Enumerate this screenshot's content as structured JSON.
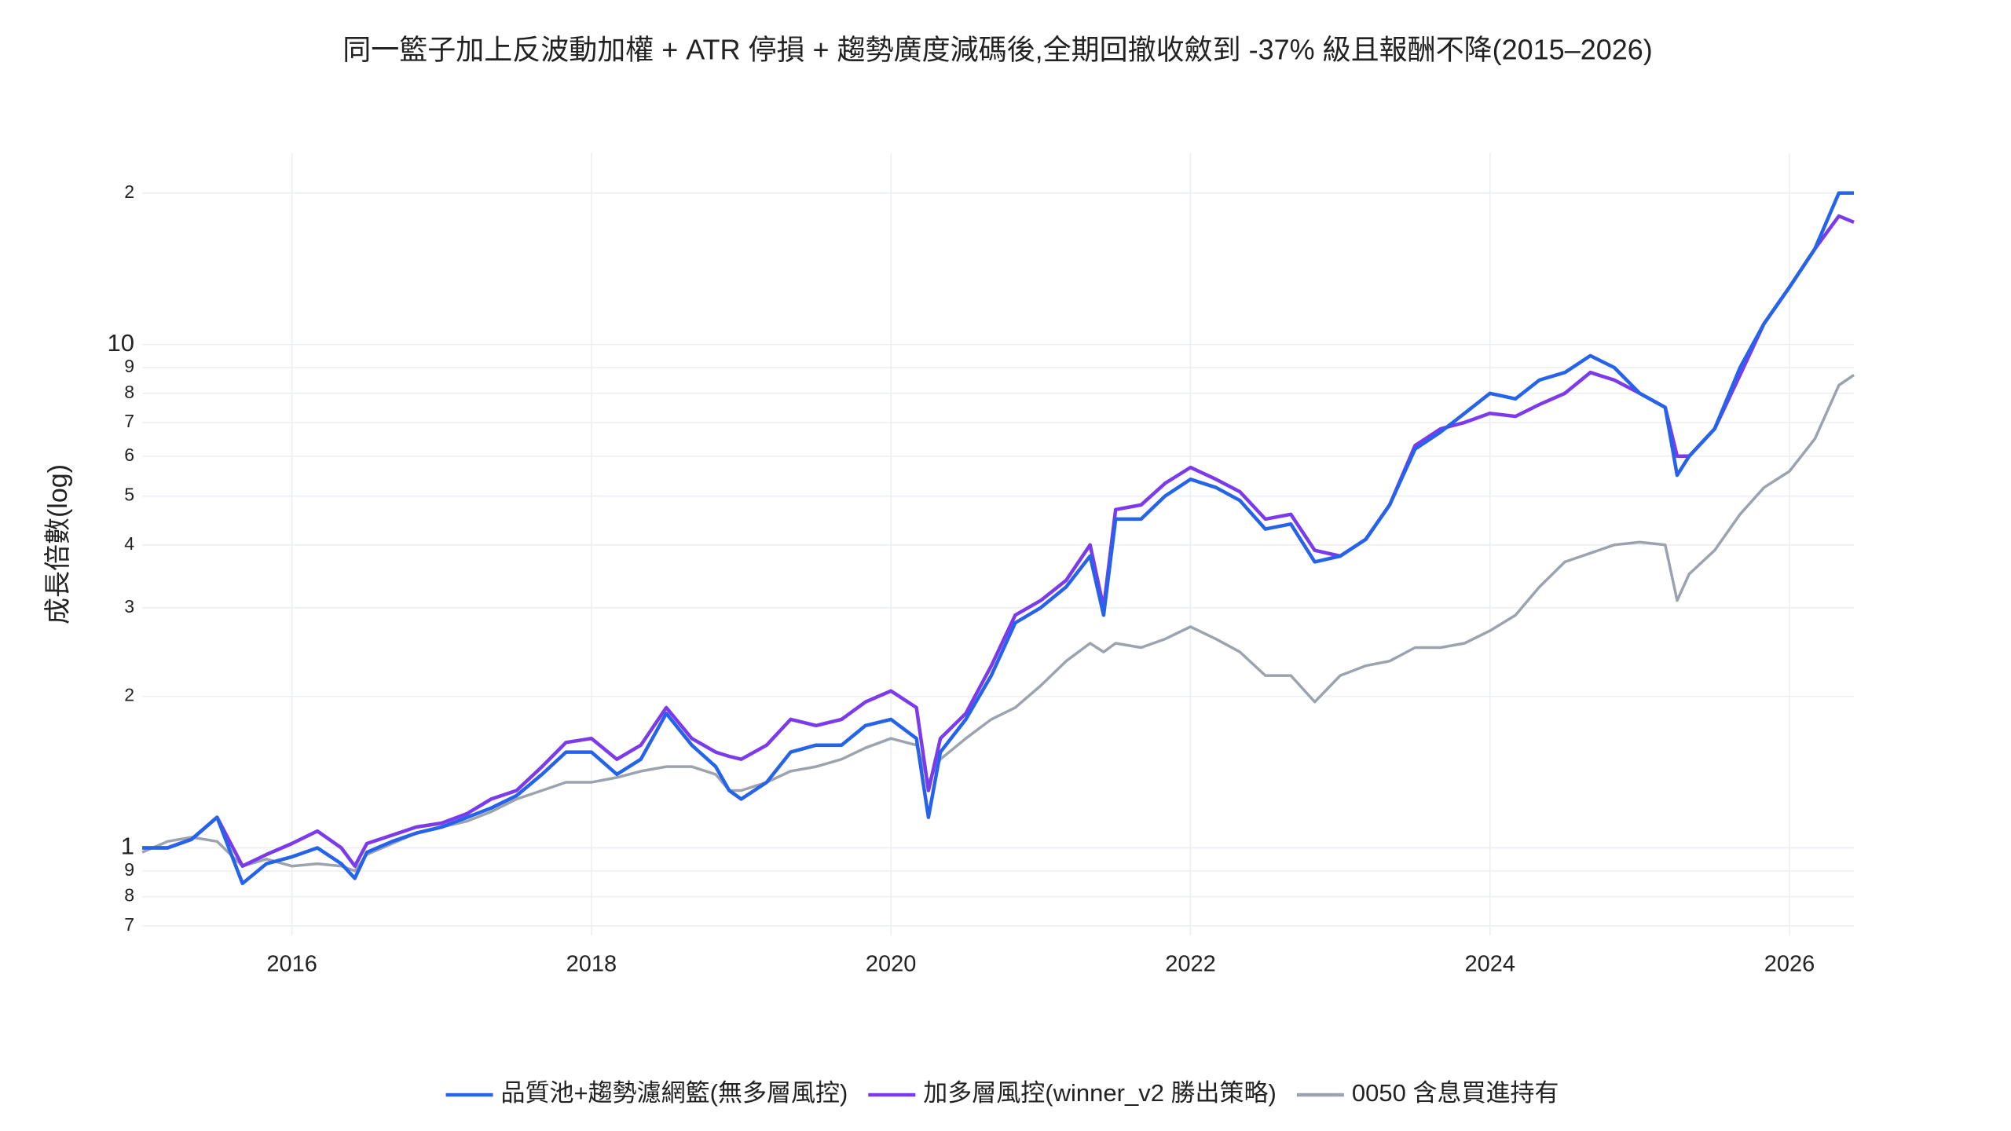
{
  "chart_data": {
    "type": "line",
    "title": "同一籃子加上反波動加權 + ATR 停損 + 趨勢廣度減碼後,全期回撤收斂到 -37% 級且報酬不降(2015–2026)",
    "ylabel": "成長倍數(log)",
    "log_y": true,
    "grid": true,
    "legend": "bottom",
    "x": [
      2015.0,
      2015.17,
      2015.33,
      2015.5,
      2015.67,
      2015.83,
      2016.0,
      2016.17,
      2016.33,
      2016.42,
      2016.5,
      2016.67,
      2016.83,
      2017.0,
      2017.17,
      2017.33,
      2017.5,
      2017.67,
      2017.83,
      2018.0,
      2018.17,
      2018.33,
      2018.5,
      2018.67,
      2018.83,
      2018.92,
      2019.0,
      2019.17,
      2019.33,
      2019.5,
      2019.67,
      2019.83,
      2020.0,
      2020.17,
      2020.25,
      2020.33,
      2020.5,
      2020.67,
      2020.83,
      2021.0,
      2021.17,
      2021.33,
      2021.42,
      2021.5,
      2021.67,
      2021.83,
      2022.0,
      2022.17,
      2022.33,
      2022.5,
      2022.67,
      2022.83,
      2023.0,
      2023.17,
      2023.33,
      2023.5,
      2023.67,
      2023.83,
      2024.0,
      2024.17,
      2024.33,
      2024.5,
      2024.67,
      2024.83,
      2025.0,
      2025.17,
      2025.25,
      2025.33,
      2025.5,
      2025.67,
      2025.83,
      2026.0,
      2026.17,
      2026.33,
      2026.43
    ],
    "series": [
      {
        "name": "品質池+趨勢濾網籃(無多層風控)",
        "color": "#2563eb",
        "values": [
          1.0,
          1.0,
          1.04,
          1.15,
          0.85,
          0.93,
          0.96,
          1.0,
          0.93,
          0.87,
          0.98,
          1.03,
          1.07,
          1.1,
          1.15,
          1.2,
          1.27,
          1.4,
          1.55,
          1.55,
          1.4,
          1.5,
          1.85,
          1.6,
          1.45,
          1.3,
          1.25,
          1.35,
          1.55,
          1.6,
          1.6,
          1.75,
          1.8,
          1.65,
          1.15,
          1.55,
          1.8,
          2.2,
          2.8,
          3.0,
          3.3,
          3.8,
          2.9,
          4.5,
          4.5,
          5.0,
          5.4,
          5.2,
          4.9,
          4.3,
          4.4,
          3.7,
          3.8,
          4.1,
          4.8,
          6.2,
          6.7,
          7.3,
          8.0,
          7.8,
          8.5,
          8.8,
          9.5,
          9.0,
          8.0,
          7.5,
          5.5,
          6.0,
          6.8,
          9.0,
          11,
          13,
          15.5,
          20,
          20
        ]
      },
      {
        "name": "加多層風控(winner_v2 勝出策略)",
        "color": "#7c3aed",
        "values": [
          1.0,
          1.0,
          1.04,
          1.15,
          0.92,
          0.97,
          1.02,
          1.08,
          1.0,
          0.92,
          1.02,
          1.06,
          1.1,
          1.12,
          1.17,
          1.25,
          1.3,
          1.45,
          1.62,
          1.65,
          1.5,
          1.6,
          1.9,
          1.65,
          1.55,
          1.52,
          1.5,
          1.6,
          1.8,
          1.75,
          1.8,
          1.95,
          2.05,
          1.9,
          1.3,
          1.65,
          1.85,
          2.3,
          2.9,
          3.1,
          3.4,
          4.0,
          3.0,
          4.7,
          4.8,
          5.3,
          5.7,
          5.4,
          5.1,
          4.5,
          4.6,
          3.9,
          3.8,
          4.1,
          4.8,
          6.3,
          6.8,
          7.0,
          7.3,
          7.2,
          7.6,
          8.0,
          8.8,
          8.5,
          8.0,
          7.5,
          6.0,
          6.0,
          6.8,
          8.7,
          11,
          13,
          15.5,
          18,
          17.5
        ]
      },
      {
        "name": "0050 含息買進持有",
        "color": "#9ca3af",
        "values": [
          0.98,
          1.03,
          1.05,
          1.03,
          0.92,
          0.95,
          0.92,
          0.93,
          0.92,
          0.9,
          0.97,
          1.02,
          1.07,
          1.1,
          1.13,
          1.18,
          1.25,
          1.3,
          1.35,
          1.35,
          1.38,
          1.42,
          1.45,
          1.45,
          1.4,
          1.3,
          1.3,
          1.35,
          1.42,
          1.45,
          1.5,
          1.58,
          1.65,
          1.6,
          1.35,
          1.5,
          1.65,
          1.8,
          1.9,
          2.1,
          2.35,
          2.55,
          2.45,
          2.55,
          2.5,
          2.6,
          2.75,
          2.6,
          2.45,
          2.2,
          2.2,
          1.95,
          2.2,
          2.3,
          2.35,
          2.5,
          2.5,
          2.55,
          2.7,
          2.9,
          3.3,
          3.7,
          3.85,
          4.0,
          4.05,
          4.0,
          3.1,
          3.5,
          3.9,
          4.6,
          5.2,
          5.6,
          6.5,
          8.3,
          8.7
        ]
      }
    ],
    "xlim": [
      2015.0,
      2026.43
    ],
    "xticks": [
      2016,
      2018,
      2020,
      2022,
      2024,
      2026
    ],
    "ylim": [
      0.67,
      24
    ],
    "yticks": [
      {
        "value": 0.7,
        "label": "7"
      },
      {
        "value": 0.8,
        "label": "8"
      },
      {
        "value": 0.9,
        "label": "9"
      },
      1,
      2,
      3,
      4,
      5,
      6,
      7,
      8,
      9,
      10,
      {
        "value": 20,
        "label": "2"
      }
    ]
  }
}
